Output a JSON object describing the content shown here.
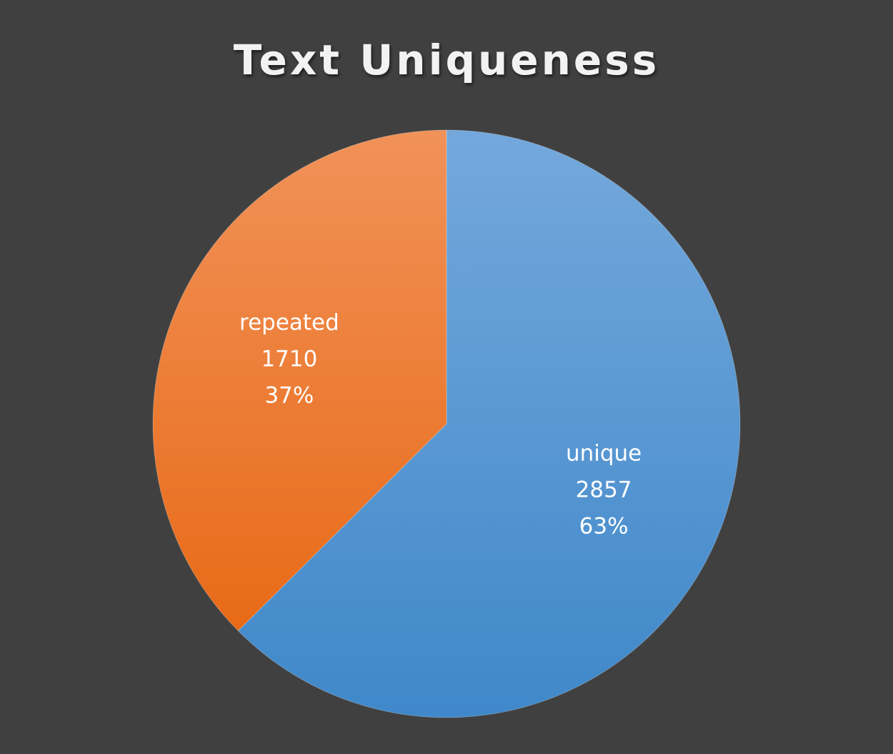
{
  "chart_data": {
    "type": "pie",
    "title": "Text Uniqueness",
    "categories": [
      "unique",
      "repeated"
    ],
    "values": [
      2857,
      1710
    ],
    "percent_labels": [
      "63%",
      "37%"
    ],
    "start_angle": "12 o'clock, clockwise",
    "colors": [
      "#5b9bd5",
      "#ed7d31"
    ],
    "background": "#404040",
    "legend": "none (labels inside slices)"
  }
}
